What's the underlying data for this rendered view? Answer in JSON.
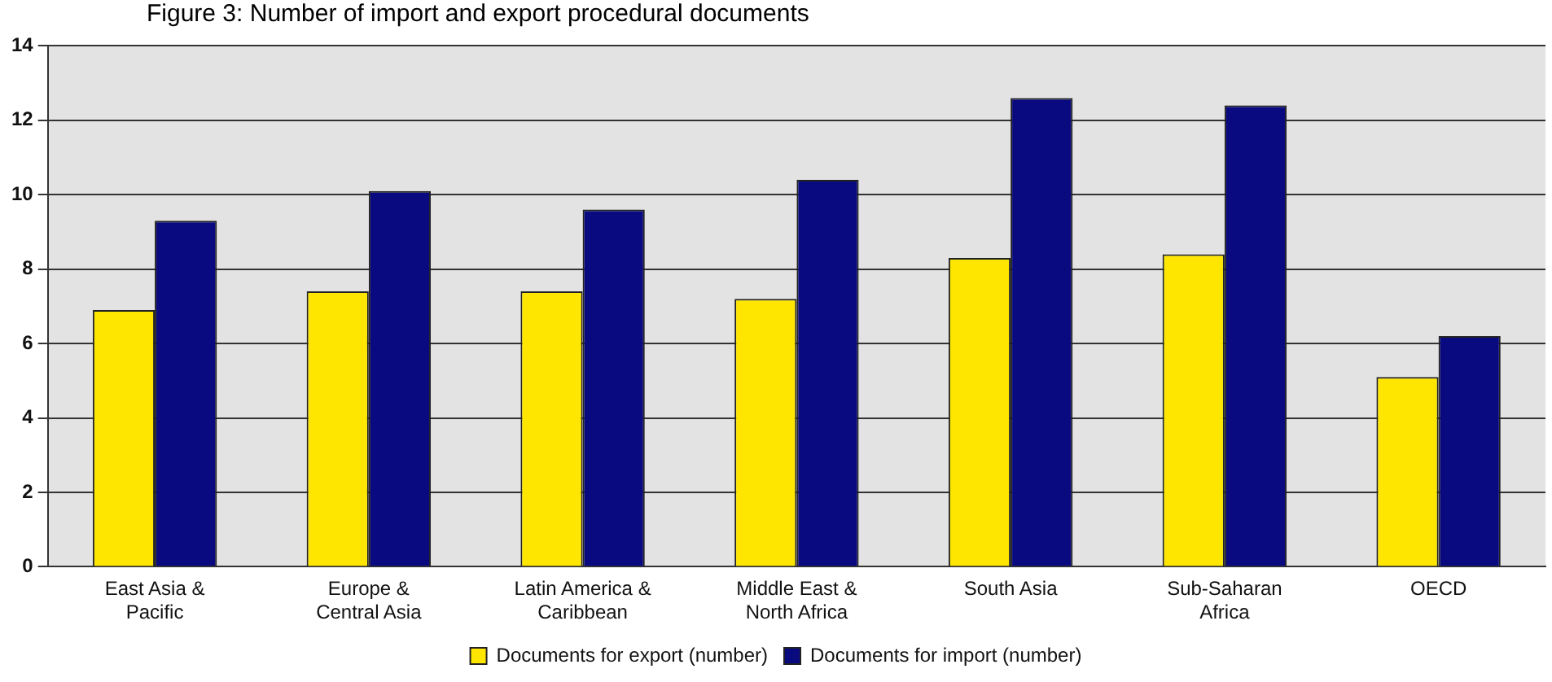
{
  "chart_data": {
    "type": "bar",
    "title": "Figure 3: Number of import and export procedural documents",
    "categories": [
      "East Asia & Pacific",
      "Europe & Central Asia",
      "Latin America & Caribbean",
      "Middle East & North Africa",
      "South Asia",
      "Sub-Saharan Africa",
      "OECD"
    ],
    "series": [
      {
        "name": "Documents for export (number)",
        "color": "#ffe600",
        "values": [
          6.9,
          7.4,
          7.4,
          7.2,
          8.3,
          8.4,
          5.1
        ]
      },
      {
        "name": "Documents for import (number)",
        "color": "#0a0a80",
        "values": [
          9.3,
          10.1,
          9.6,
          10.4,
          12.6,
          12.4,
          6.2
        ]
      }
    ],
    "ylim": [
      0,
      14
    ],
    "yticks": [
      0,
      2,
      4,
      6,
      8,
      10,
      12,
      14
    ],
    "grid": "y",
    "legend": "bottom"
  }
}
